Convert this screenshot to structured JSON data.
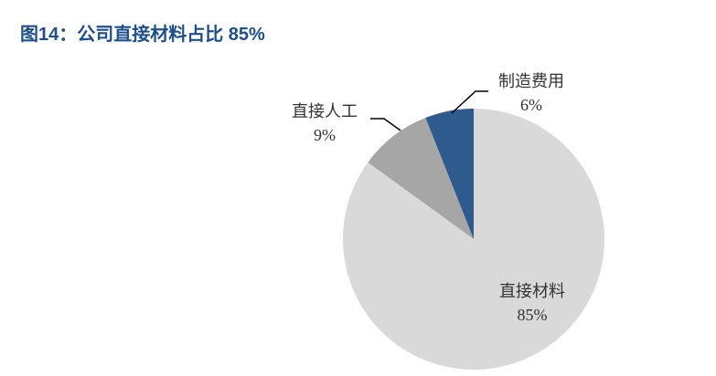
{
  "chart_data": {
    "type": "pie",
    "title": "图14：公司直接材料占比 85%",
    "categories": [
      "直接材料",
      "直接人工",
      "制造费用"
    ],
    "values": [
      85,
      9,
      6
    ],
    "value_labels": [
      "85%",
      "9%",
      "6%"
    ],
    "colors": [
      "#d9d9d9",
      "#a6a6a6",
      "#2f5a8e"
    ]
  }
}
